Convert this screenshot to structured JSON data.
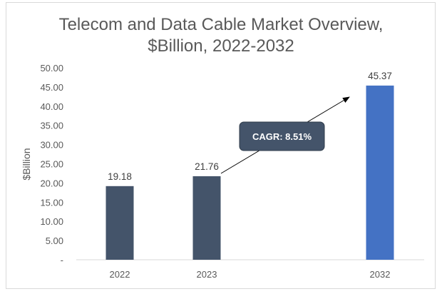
{
  "chart_data": {
    "type": "bar",
    "title": "Telecom and Data Cable Market Overview, $Billion, 2022-2032",
    "title_lines": [
      "Telecom and Data Cable Market Overview,",
      "$Billion, 2022-2032"
    ],
    "categories": [
      "2022",
      "2023",
      "2032"
    ],
    "values": [
      19.18,
      21.76,
      45.37
    ],
    "data_labels": [
      "19.18",
      "21.76",
      "45.37"
    ],
    "bar_colors": [
      "#44546a",
      "#44546a",
      "#4472c4"
    ],
    "xlabel": "",
    "ylabel": "$Billion",
    "ylim": [
      0,
      50
    ],
    "yticks": [
      "-",
      "5.00",
      "10.00",
      "15.00",
      "20.00",
      "25.00",
      "30.00",
      "35.00",
      "40.00",
      "45.00",
      "50.00"
    ],
    "grid": false,
    "legend": "none",
    "annotation": {
      "text": "CAGR: 8.51%",
      "fill": "#44546a",
      "arrow": "from 2023 bar to 2032 bar"
    }
  }
}
